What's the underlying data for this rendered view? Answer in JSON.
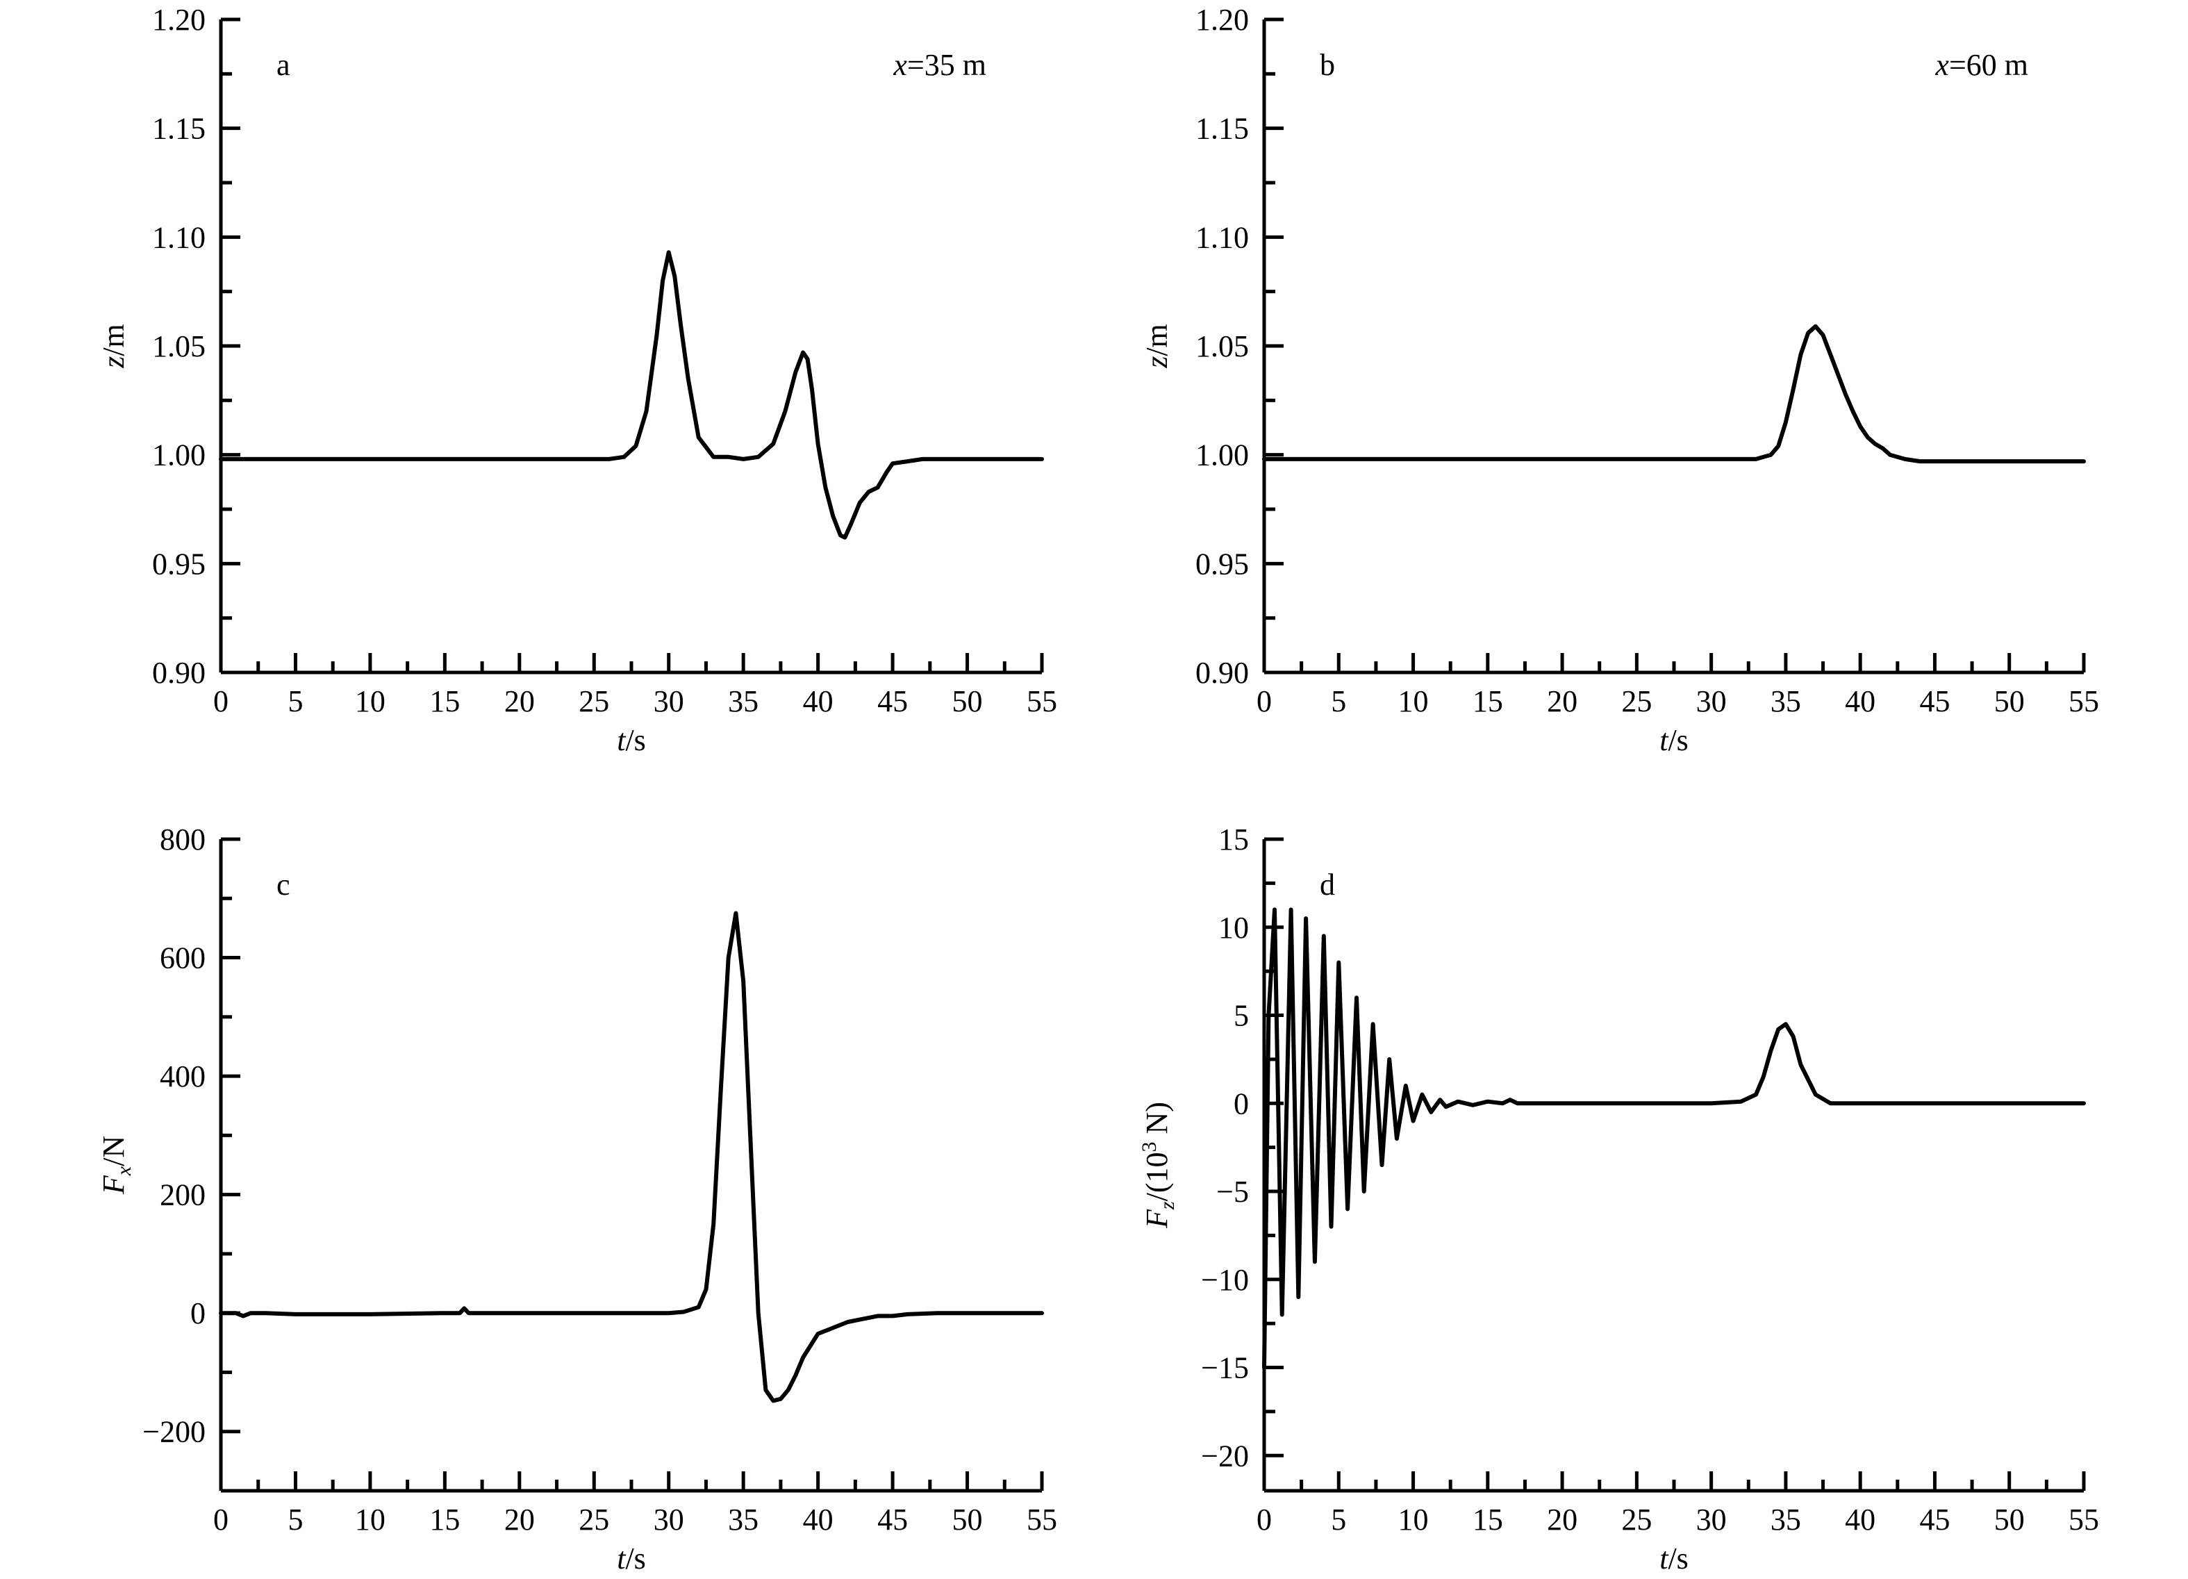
{
  "chart_data": [
    {
      "type": "line",
      "panel_label": "a",
      "annotation_var": "x",
      "annotation_rest": "=35 m",
      "xlabel_var": "t",
      "xlabel_rest": "/s",
      "ylabel_var": "z",
      "ylabel_rest": "/m",
      "xlim": [
        0,
        55
      ],
      "ylim": [
        0.9,
        1.2
      ],
      "x_ticks": [
        "0",
        "5",
        "10",
        "15",
        "20",
        "25",
        "30",
        "35",
        "40",
        "45",
        "50",
        "55"
      ],
      "y_ticks": [
        "0.90",
        "0.95",
        "1.00",
        "1.05",
        "1.10",
        "1.15",
        "1.20"
      ],
      "series": [
        {
          "x": [
            0,
            1,
            2,
            4,
            6,
            8,
            10,
            15,
            20,
            25,
            26,
            27,
            27.8,
            28.5,
            29.2,
            29.6,
            30,
            30.4,
            30.8,
            31.3,
            32,
            33,
            34,
            35,
            36,
            37,
            37.8,
            38.5,
            39,
            39.3,
            39.6,
            40,
            40.5,
            41,
            41.5,
            41.8,
            42.2,
            42.8,
            43.4,
            44,
            44.6,
            45,
            46,
            47,
            48,
            50,
            52,
            55
          ],
          "y": [
            0.998,
            0.998,
            0.998,
            0.998,
            0.998,
            0.998,
            0.998,
            0.998,
            0.998,
            0.998,
            0.998,
            0.999,
            1.004,
            1.02,
            1.055,
            1.08,
            1.093,
            1.082,
            1.06,
            1.035,
            1.008,
            0.999,
            0.999,
            0.998,
            0.999,
            1.005,
            1.02,
            1.038,
            1.047,
            1.044,
            1.03,
            1.005,
            0.985,
            0.972,
            0.963,
            0.962,
            0.968,
            0.978,
            0.983,
            0.985,
            0.992,
            0.996,
            0.997,
            0.998,
            0.998,
            0.998,
            0.998,
            0.998
          ]
        }
      ]
    },
    {
      "type": "line",
      "panel_label": "b",
      "annotation_var": "x",
      "annotation_rest": "=60 m",
      "xlabel_var": "t",
      "xlabel_rest": "/s",
      "ylabel_var": "z",
      "ylabel_rest": "/m",
      "xlim": [
        0,
        55
      ],
      "ylim": [
        0.9,
        1.2
      ],
      "x_ticks": [
        "0",
        "5",
        "10",
        "15",
        "20",
        "25",
        "30",
        "35",
        "40",
        "45",
        "50",
        "55"
      ],
      "y_ticks": [
        "0.90",
        "0.95",
        "1.00",
        "1.05",
        "1.10",
        "1.15",
        "1.20"
      ],
      "series": [
        {
          "x": [
            0,
            2,
            5,
            10,
            15,
            20,
            25,
            30,
            33,
            34,
            34.5,
            35,
            35.5,
            36,
            36.5,
            37,
            37.5,
            38,
            38.5,
            39,
            39.5,
            40,
            40.5,
            41,
            41.5,
            42,
            43,
            44,
            45,
            47,
            50,
            55
          ],
          "y": [
            0.998,
            0.998,
            0.998,
            0.998,
            0.998,
            0.998,
            0.998,
            0.998,
            0.998,
            1.0,
            1.004,
            1.015,
            1.03,
            1.046,
            1.056,
            1.059,
            1.055,
            1.046,
            1.037,
            1.028,
            1.02,
            1.013,
            1.008,
            1.005,
            1.003,
            1.0,
            0.998,
            0.997,
            0.997,
            0.997,
            0.997,
            0.997
          ]
        }
      ]
    },
    {
      "type": "line",
      "panel_label": "c",
      "xlabel_var": "t",
      "xlabel_rest": "/s",
      "ylabel_var": "F",
      "ylabel_sub": "x",
      "ylabel_rest": "/N",
      "xlim": [
        0,
        55
      ],
      "ylim": [
        -300,
        800
      ],
      "x_ticks": [
        "0",
        "5",
        "10",
        "15",
        "20",
        "25",
        "30",
        "35",
        "40",
        "45",
        "50",
        "55"
      ],
      "y_ticks": [
        "−200",
        "0",
        "200",
        "400",
        "600",
        "800"
      ],
      "y_tick_values": [
        -200,
        0,
        200,
        400,
        600,
        800
      ],
      "series": [
        {
          "x": [
            0,
            1,
            1.5,
            2,
            3,
            5,
            10,
            15,
            16,
            16.3,
            16.6,
            20,
            25,
            30,
            31,
            32,
            32.5,
            33,
            33.5,
            34,
            34.5,
            35,
            35.5,
            36,
            36.5,
            37,
            37.5,
            38,
            38.5,
            39,
            40,
            41,
            42,
            43,
            44,
            45,
            46,
            48,
            50,
            55
          ],
          "y": [
            0,
            0,
            -5,
            0,
            0,
            -2,
            -2,
            0,
            0,
            8,
            0,
            0,
            0,
            0,
            2,
            10,
            40,
            150,
            380,
            600,
            675,
            560,
            280,
            0,
            -130,
            -148,
            -145,
            -130,
            -105,
            -75,
            -35,
            -25,
            -15,
            -10,
            -5,
            -5,
            -2,
            0,
            0,
            0
          ]
        }
      ]
    },
    {
      "type": "line",
      "panel_label": "d",
      "xlabel_var": "t",
      "xlabel_rest": "/s",
      "ylabel_var": "F",
      "ylabel_sub": "z",
      "ylabel_mid": "/(10",
      "ylabel_sup": "3",
      "ylabel_end": " N)",
      "xlim": [
        0,
        55
      ],
      "ylim": [
        -22,
        15
      ],
      "x_ticks": [
        "0",
        "5",
        "10",
        "15",
        "20",
        "25",
        "30",
        "35",
        "40",
        "45",
        "50",
        "55"
      ],
      "y_ticks": [
        "−20",
        "−15",
        "−10",
        "−5",
        "0",
        "5",
        "10",
        "15"
      ],
      "y_tick_values": [
        -20,
        -15,
        -10,
        -5,
        0,
        5,
        10,
        15
      ],
      "series": [
        {
          "x": [
            0,
            0.3,
            0.7,
            1.2,
            1.8,
            2.3,
            2.8,
            3.4,
            4.0,
            4.5,
            5.0,
            5.6,
            6.2,
            6.7,
            7.3,
            7.9,
            8.4,
            8.9,
            9.5,
            10.0,
            10.6,
            11.2,
            11.8,
            12.2,
            13,
            14,
            15,
            16,
            16.5,
            17,
            20,
            25,
            30,
            32,
            33,
            33.5,
            34,
            34.5,
            35,
            35.5,
            36,
            37,
            38,
            40,
            45,
            50,
            55
          ],
          "y": [
            -15,
            5,
            11,
            -12,
            11,
            -11,
            10.5,
            -9,
            9.5,
            -7,
            8,
            -6,
            6,
            -5,
            4.5,
            -3.5,
            2.5,
            -2,
            1,
            -1,
            0.5,
            -0.5,
            0.2,
            -0.2,
            0.1,
            -0.1,
            0.1,
            0,
            0.2,
            0,
            0,
            0,
            0,
            0.1,
            0.5,
            1.5,
            3.0,
            4.2,
            4.5,
            3.8,
            2.2,
            0.5,
            0,
            0,
            0,
            0,
            0
          ]
        }
      ]
    }
  ]
}
